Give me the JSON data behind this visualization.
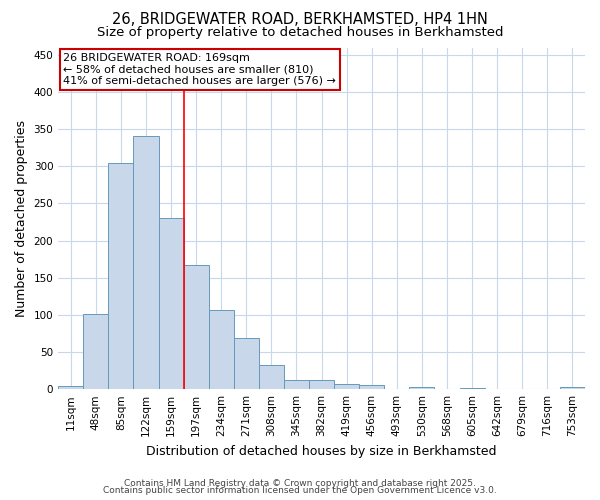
{
  "title_line1": "26, BRIDGEWATER ROAD, BERKHAMSTED, HP4 1HN",
  "title_line2": "Size of property relative to detached houses in Berkhamsted",
  "xlabel": "Distribution of detached houses by size in Berkhamsted",
  "ylabel": "Number of detached properties",
  "bar_labels": [
    "11sqm",
    "48sqm",
    "85sqm",
    "122sqm",
    "159sqm",
    "197sqm",
    "234sqm",
    "271sqm",
    "308sqm",
    "345sqm",
    "382sqm",
    "419sqm",
    "456sqm",
    "493sqm",
    "530sqm",
    "568sqm",
    "605sqm",
    "642sqm",
    "679sqm",
    "716sqm",
    "753sqm"
  ],
  "bar_values": [
    4,
    101,
    305,
    341,
    230,
    167,
    107,
    69,
    33,
    13,
    13,
    7,
    6,
    0,
    3,
    0,
    2,
    0,
    0,
    0,
    3
  ],
  "bar_color": "#c8d8ea",
  "bar_edge_color": "#6699bb",
  "red_line_index": 4,
  "annotation_line1": "26 BRIDGEWATER ROAD: 169sqm",
  "annotation_line2": "← 58% of detached houses are smaller (810)",
  "annotation_line3": "41% of semi-detached houses are larger (576) →",
  "annotation_box_facecolor": "#ffffff",
  "annotation_box_edgecolor": "#cc0000",
  "ylim": [
    0,
    460
  ],
  "yticks": [
    0,
    50,
    100,
    150,
    200,
    250,
    300,
    350,
    400,
    450
  ],
  "footer_line1": "Contains HM Land Registry data © Crown copyright and database right 2025.",
  "footer_line2": "Contains public sector information licensed under the Open Government Licence v3.0.",
  "background_color": "#ffffff",
  "plot_bg_color": "#ffffff",
  "grid_color": "#c8d8ea",
  "title_fontsize": 10.5,
  "subtitle_fontsize": 9.5,
  "axis_label_fontsize": 9,
  "tick_fontsize": 7.5,
  "annotation_fontsize": 8,
  "footer_fontsize": 6.5,
  "bar_width": 1.0
}
